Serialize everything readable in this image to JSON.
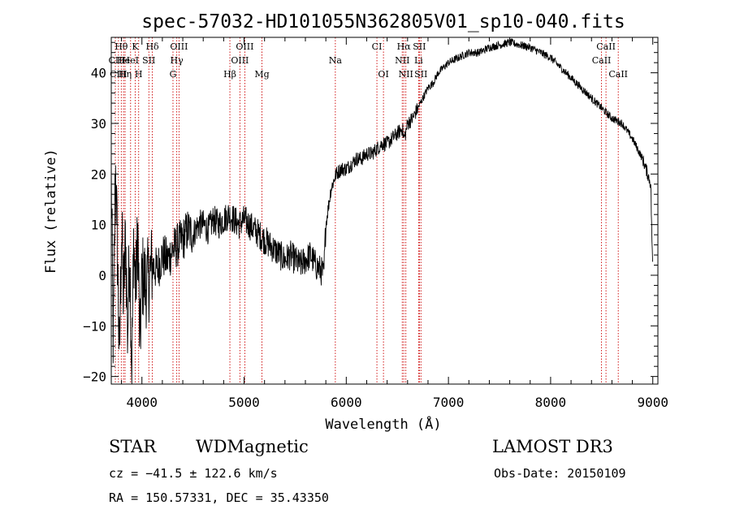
{
  "chart_data": {
    "type": "line",
    "title": "spec-57032-HD101055N362805V01_sp10-040.fits",
    "xlabel": "Wavelength (Å)",
    "ylabel": "Flux (relative)",
    "xlim": [
      3700,
      9050
    ],
    "ylim": [
      -21.5,
      47
    ],
    "xticks": [
      4000,
      5000,
      6000,
      7000,
      8000,
      9000
    ],
    "yticks": [
      -20,
      -10,
      0,
      10,
      20,
      30,
      40
    ],
    "grid": false,
    "series": [
      {
        "name": "spectrum",
        "x": [
          3700,
          3720,
          3740,
          3760,
          3780,
          3800,
          3820,
          3840,
          3860,
          3880,
          3900,
          3920,
          3940,
          3960,
          3980,
          4000,
          4050,
          4100,
          4150,
          4200,
          4250,
          4300,
          4350,
          4400,
          4450,
          4500,
          4550,
          4600,
          4650,
          4700,
          4750,
          4800,
          4850,
          4900,
          4950,
          5000,
          5050,
          5100,
          5150,
          5200,
          5250,
          5300,
          5350,
          5400,
          5450,
          5500,
          5550,
          5600,
          5650,
          5700,
          5750,
          5780,
          5800,
          5850,
          5900,
          5950,
          6000,
          6050,
          6100,
          6150,
          6200,
          6250,
          6300,
          6350,
          6400,
          6450,
          6500,
          6550,
          6563,
          6580,
          6600,
          6650,
          6700,
          6750,
          6800,
          6850,
          6900,
          6950,
          7000,
          7100,
          7200,
          7300,
          7400,
          7500,
          7600,
          7700,
          7800,
          7900,
          8000,
          8100,
          8200,
          8300,
          8400,
          8500,
          8600,
          8700,
          8800,
          8900,
          8950,
          8980,
          9000
        ],
        "values": [
          20,
          -15,
          22,
          5,
          -18,
          10,
          -5,
          8,
          -12,
          6,
          -19,
          7,
          -3,
          9,
          -15,
          0,
          -2,
          2,
          1,
          4,
          3,
          5,
          6,
          7,
          9,
          8,
          10,
          10,
          9,
          11,
          10,
          11,
          12,
          11,
          10,
          11,
          10,
          9,
          8,
          7,
          6,
          5,
          4,
          3,
          4,
          3,
          2,
          3,
          4,
          2,
          1,
          0,
          10,
          17,
          20,
          21,
          21,
          22,
          23,
          23,
          24,
          24,
          25,
          26,
          26,
          27,
          28,
          29,
          27,
          28,
          30,
          31,
          33,
          35,
          37,
          38,
          40,
          41,
          42,
          43,
          44,
          44,
          45,
          45.5,
          46,
          45.5,
          45,
          44,
          43,
          41,
          39,
          37,
          35,
          33,
          31,
          30,
          27,
          23,
          20,
          18,
          0
        ]
      }
    ],
    "line_labels": [
      {
        "label": "Hθ",
        "wavelength": 3798,
        "row": 1
      },
      {
        "label": "CII",
        "wavelength": 3740,
        "row": 2
      },
      {
        "label": "CIII",
        "wavelength": 3770,
        "row": 3
      },
      {
        "label": "He",
        "wavelength": 3820,
        "row": 2
      },
      {
        "label": "Hη",
        "wavelength": 3835,
        "row": 3
      },
      {
        "label": "K",
        "wavelength": 3934,
        "row": 1
      },
      {
        "label": "HeI",
        "wavelength": 3889,
        "row": 2
      },
      {
        "label": "SII",
        "wavelength": 4068,
        "row": 2
      },
      {
        "label": "H",
        "wavelength": 3968,
        "row": 3
      },
      {
        "label": "Hδ",
        "wavelength": 4102,
        "row": 1
      },
      {
        "label": "OIII",
        "wavelength": 4363,
        "row": 1
      },
      {
        "label": "Hγ",
        "wavelength": 4341,
        "row": 2
      },
      {
        "label": "G",
        "wavelength": 4304,
        "row": 3
      },
      {
        "label": "OIII",
        "wavelength": 5007,
        "row": 1
      },
      {
        "label": "OIII",
        "wavelength": 4959,
        "row": 2
      },
      {
        "label": "Hβ",
        "wavelength": 4861,
        "row": 3
      },
      {
        "label": "Mg",
        "wavelength": 5175,
        "row": 3
      },
      {
        "label": "Na",
        "wavelength": 5893,
        "row": 2
      },
      {
        "label": "CI",
        "wavelength": 6300,
        "row": 1
      },
      {
        "label": "OI",
        "wavelength": 6364,
        "row": 3
      },
      {
        "label": "Hα",
        "wavelength": 6563,
        "row": 1
      },
      {
        "label": "SII",
        "wavelength": 6716,
        "row": 1
      },
      {
        "label": "NII",
        "wavelength": 6548,
        "row": 2
      },
      {
        "label": "Li",
        "wavelength": 6708,
        "row": 2
      },
      {
        "label": "NII",
        "wavelength": 6583,
        "row": 3
      },
      {
        "label": "SII",
        "wavelength": 6731,
        "row": 3
      },
      {
        "label": "CaII",
        "wavelength": 8542,
        "row": 1
      },
      {
        "label": "CaII",
        "wavelength": 8498,
        "row": 2
      },
      {
        "label": "CaII",
        "wavelength": 8662,
        "row": 3
      }
    ],
    "line_marker_color": "#cc0000"
  },
  "footer": {
    "object_class": "STAR",
    "subclass": "WDMagnetic",
    "survey": "LAMOST DR3",
    "redshift": "cz = −41.5 ± 122.6 km/s",
    "obs_date": "Obs-Date: 20150109",
    "coords": "RA = 150.57331, DEC =  35.43350"
  }
}
